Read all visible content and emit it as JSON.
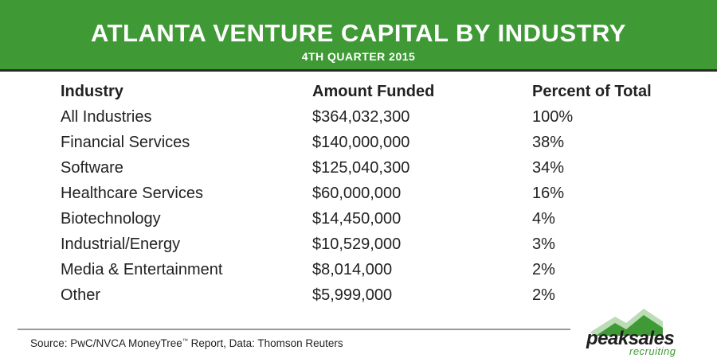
{
  "header": {
    "title": "ATLANTA VENTURE CAPITAL BY INDUSTRY",
    "subtitle": "4TH QUARTER 2015"
  },
  "chart_data": {
    "type": "table",
    "columns": [
      "Industry",
      "Amount Funded",
      "Percent of Total"
    ],
    "rows": [
      [
        "All Industries",
        "$364,032,300",
        "100%"
      ],
      [
        "Financial Services",
        "$140,000,000",
        "38%"
      ],
      [
        "Software",
        "$125,040,300",
        "34%"
      ],
      [
        "Healthcare Services",
        "$60,000,000",
        "16%"
      ],
      [
        "Biotechnology",
        "$14,450,000",
        "4%"
      ],
      [
        "Industrial/Energy",
        "$10,529,000",
        "3%"
      ],
      [
        "Media & Entertainment",
        "$8,014,000",
        "2%"
      ],
      [
        "Other",
        "$5,999,000",
        "2%"
      ]
    ]
  },
  "footer": {
    "source_prefix": "Source: PwC/NVCA MoneyTree",
    "trademark": "™",
    "source_suffix": " Report, Data: Thomson Reuters"
  },
  "logo": {
    "word1": "peaksales",
    "word2": "recruiting",
    "mountain_color": "#3f9a36"
  }
}
